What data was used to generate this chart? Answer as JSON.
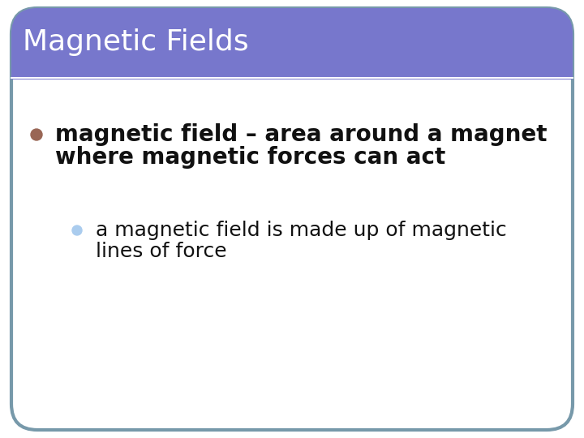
{
  "title": "Magnetic Fields",
  "title_bg_color": "#7777cc",
  "title_text_color": "#ffffff",
  "title_font_size": 26,
  "slide_bg_color": "#ffffff",
  "border_color": "#7799aa",
  "bullet1_text_line1": "magnetic field – area around a magnet",
  "bullet1_text_line2": "where magnetic forces can act",
  "bullet1_color": "#996655",
  "bullet2_text_line1": "a magnetic field is made up of magnetic",
  "bullet2_text_line2": "lines of force",
  "bullet2_color": "#aaccee",
  "body_text_color": "#111111",
  "body_font_size": 20,
  "sub_font_size": 18,
  "fig_width": 7.2,
  "fig_height": 5.4,
  "dpi": 100
}
